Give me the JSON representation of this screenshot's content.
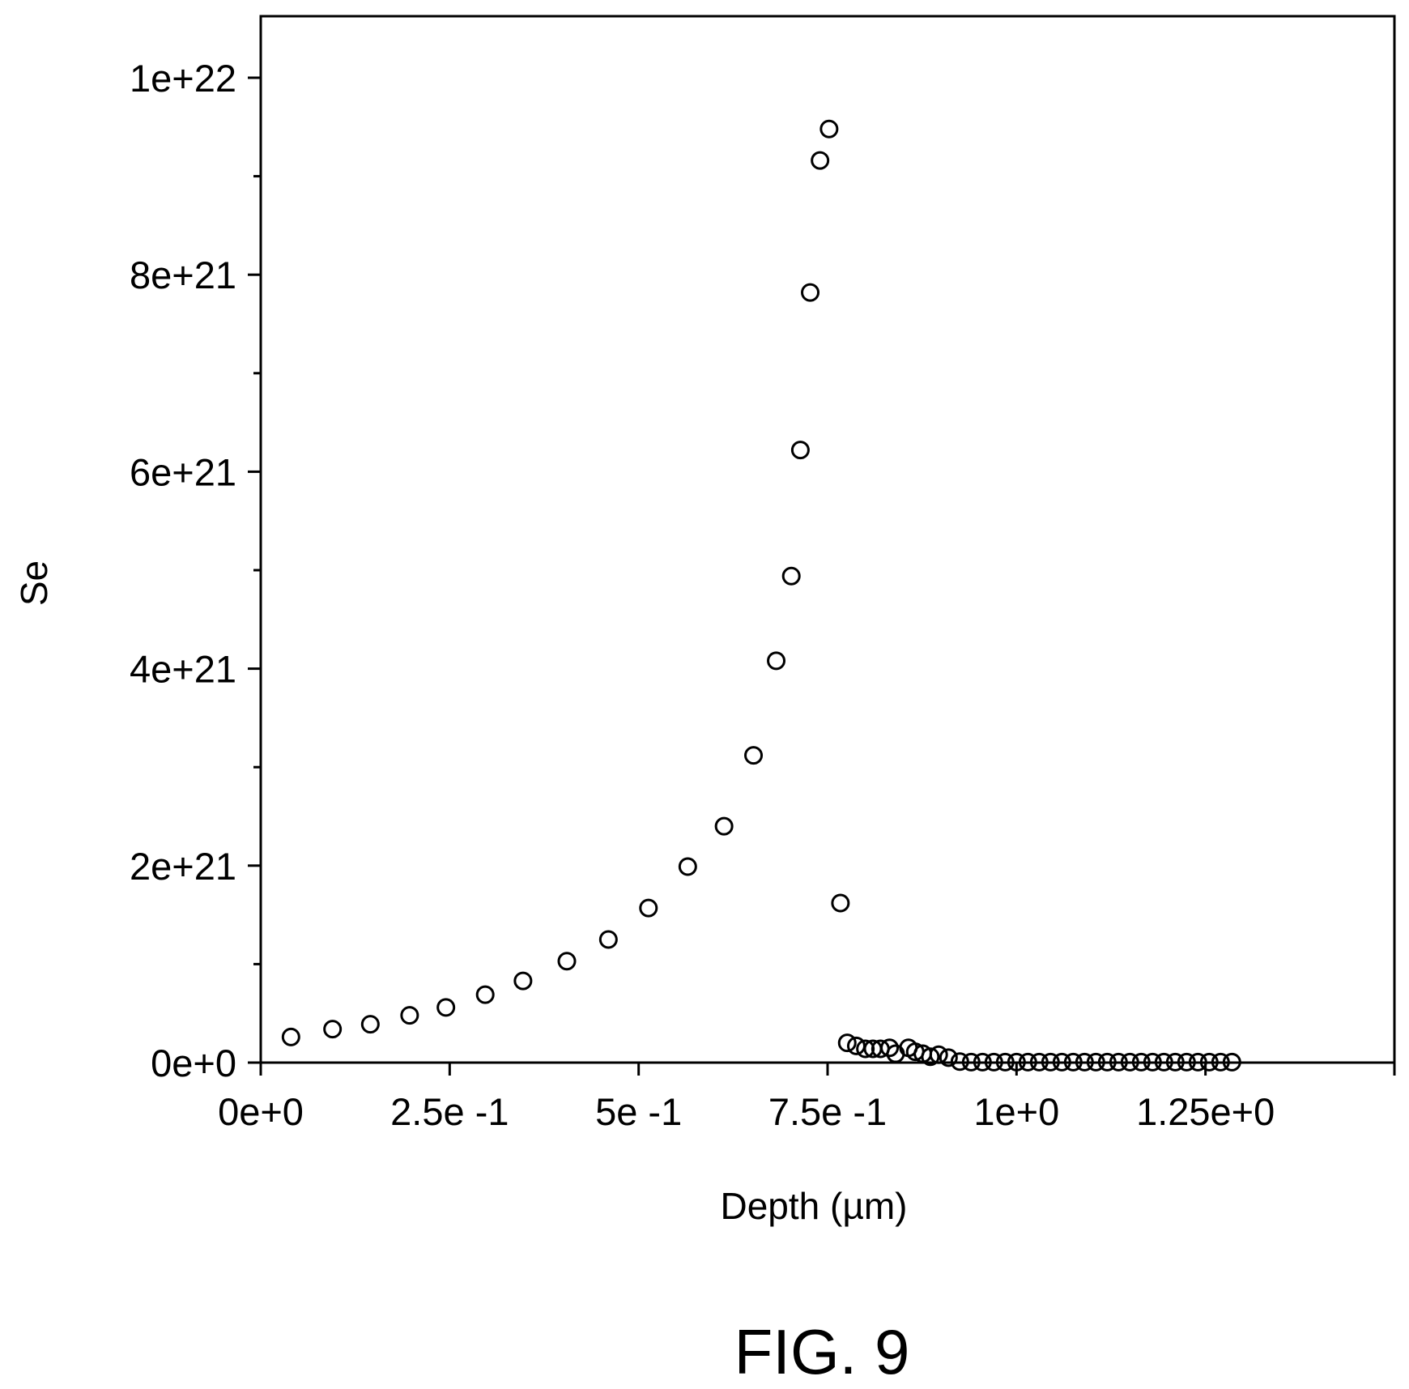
{
  "figure": {
    "caption": "FIG. 9"
  },
  "chart_data": {
    "type": "scatter",
    "title": "",
    "xlabel": "Depth (µm)",
    "ylabel": "Se",
    "xlim": [
      0,
      1.5
    ],
    "ylim": [
      0,
      1.0625e+22
    ],
    "x_ticks": [
      {
        "value": 0,
        "label": "0e+0"
      },
      {
        "value": 0.25,
        "label": "2.5e -1"
      },
      {
        "value": 0.5,
        "label": "5e -1"
      },
      {
        "value": 0.75,
        "label": "7.5e -1"
      },
      {
        "value": 1.0,
        "label": "1e+0"
      },
      {
        "value": 1.25,
        "label": "1.25e+0"
      }
    ],
    "x_extra_major_ticks": [
      1.5
    ],
    "y_ticks": [
      {
        "value": 0,
        "label": "0e+0"
      },
      {
        "value": 2e+21,
        "label": "2e+21"
      },
      {
        "value": 4e+21,
        "label": "4e+21"
      },
      {
        "value": 6e+21,
        "label": "6e+21"
      },
      {
        "value": 8e+21,
        "label": "8e+21"
      },
      {
        "value": 1e+22,
        "label": "1e+22"
      }
    ],
    "y_minor_ticks": [
      1e+21,
      3e+21,
      5e+21,
      7e+21,
      9e+21
    ],
    "grid": false,
    "legend": "none",
    "marker": "open-circle",
    "marker_color": "#000000",
    "series": [
      {
        "points": [
          [
            0.04,
            2.6e+20
          ],
          [
            0.095,
            3.4e+20
          ],
          [
            0.145,
            3.9e+20
          ],
          [
            0.197,
            4.8e+20
          ],
          [
            0.245,
            5.6e+20
          ],
          [
            0.297,
            6.9e+20
          ],
          [
            0.347,
            8.3e+20
          ],
          [
            0.405,
            1.03e+21
          ],
          [
            0.46,
            1.25e+21
          ],
          [
            0.513,
            1.57e+21
          ],
          [
            0.565,
            1.99e+21
          ],
          [
            0.613,
            2.4e+21
          ],
          [
            0.652,
            3.12e+21
          ],
          [
            0.682,
            4.08e+21
          ],
          [
            0.702,
            4.94e+21
          ],
          [
            0.714,
            6.22e+21
          ],
          [
            0.727,
            7.82e+21
          ],
          [
            0.74,
            9.16e+21
          ],
          [
            0.752,
            9.48e+21
          ],
          [
            0.767,
            1.62e+21
          ],
          [
            0.776,
            2e+20
          ],
          [
            0.788,
            1.7e+20
          ],
          [
            0.8,
            1.4e+20
          ],
          [
            0.81,
            1.4e+20
          ],
          [
            0.82,
            1.4e+20
          ],
          [
            0.832,
            1.5e+20
          ],
          [
            0.84,
            9e+19
          ],
          [
            0.857,
            1.5e+20
          ],
          [
            0.866,
            1.1e+20
          ],
          [
            0.876,
            9e+19
          ],
          [
            0.886,
            6e+19
          ],
          [
            0.897,
            8e+19
          ],
          [
            0.91,
            5e+19
          ],
          [
            0.925,
            1e+19
          ],
          [
            0.94,
            5e+18
          ],
          [
            0.955,
            5e+18
          ],
          [
            0.97,
            5e+18
          ],
          [
            0.985,
            5e+18
          ],
          [
            1.0,
            5e+18
          ],
          [
            1.015,
            5e+18
          ],
          [
            1.03,
            5e+18
          ],
          [
            1.045,
            5e+18
          ],
          [
            1.06,
            5e+18
          ],
          [
            1.075,
            5e+18
          ],
          [
            1.09,
            5e+18
          ],
          [
            1.105,
            5e+18
          ],
          [
            1.12,
            5e+18
          ],
          [
            1.135,
            5e+18
          ],
          [
            1.15,
            5e+18
          ],
          [
            1.165,
            5e+18
          ],
          [
            1.18,
            5e+18
          ],
          [
            1.195,
            5e+18
          ],
          [
            1.21,
            5e+18
          ],
          [
            1.225,
            5e+18
          ],
          [
            1.24,
            5e+18
          ],
          [
            1.255,
            5e+18
          ],
          [
            1.27,
            5e+18
          ],
          [
            1.285,
            5e+18
          ]
        ]
      }
    ]
  }
}
